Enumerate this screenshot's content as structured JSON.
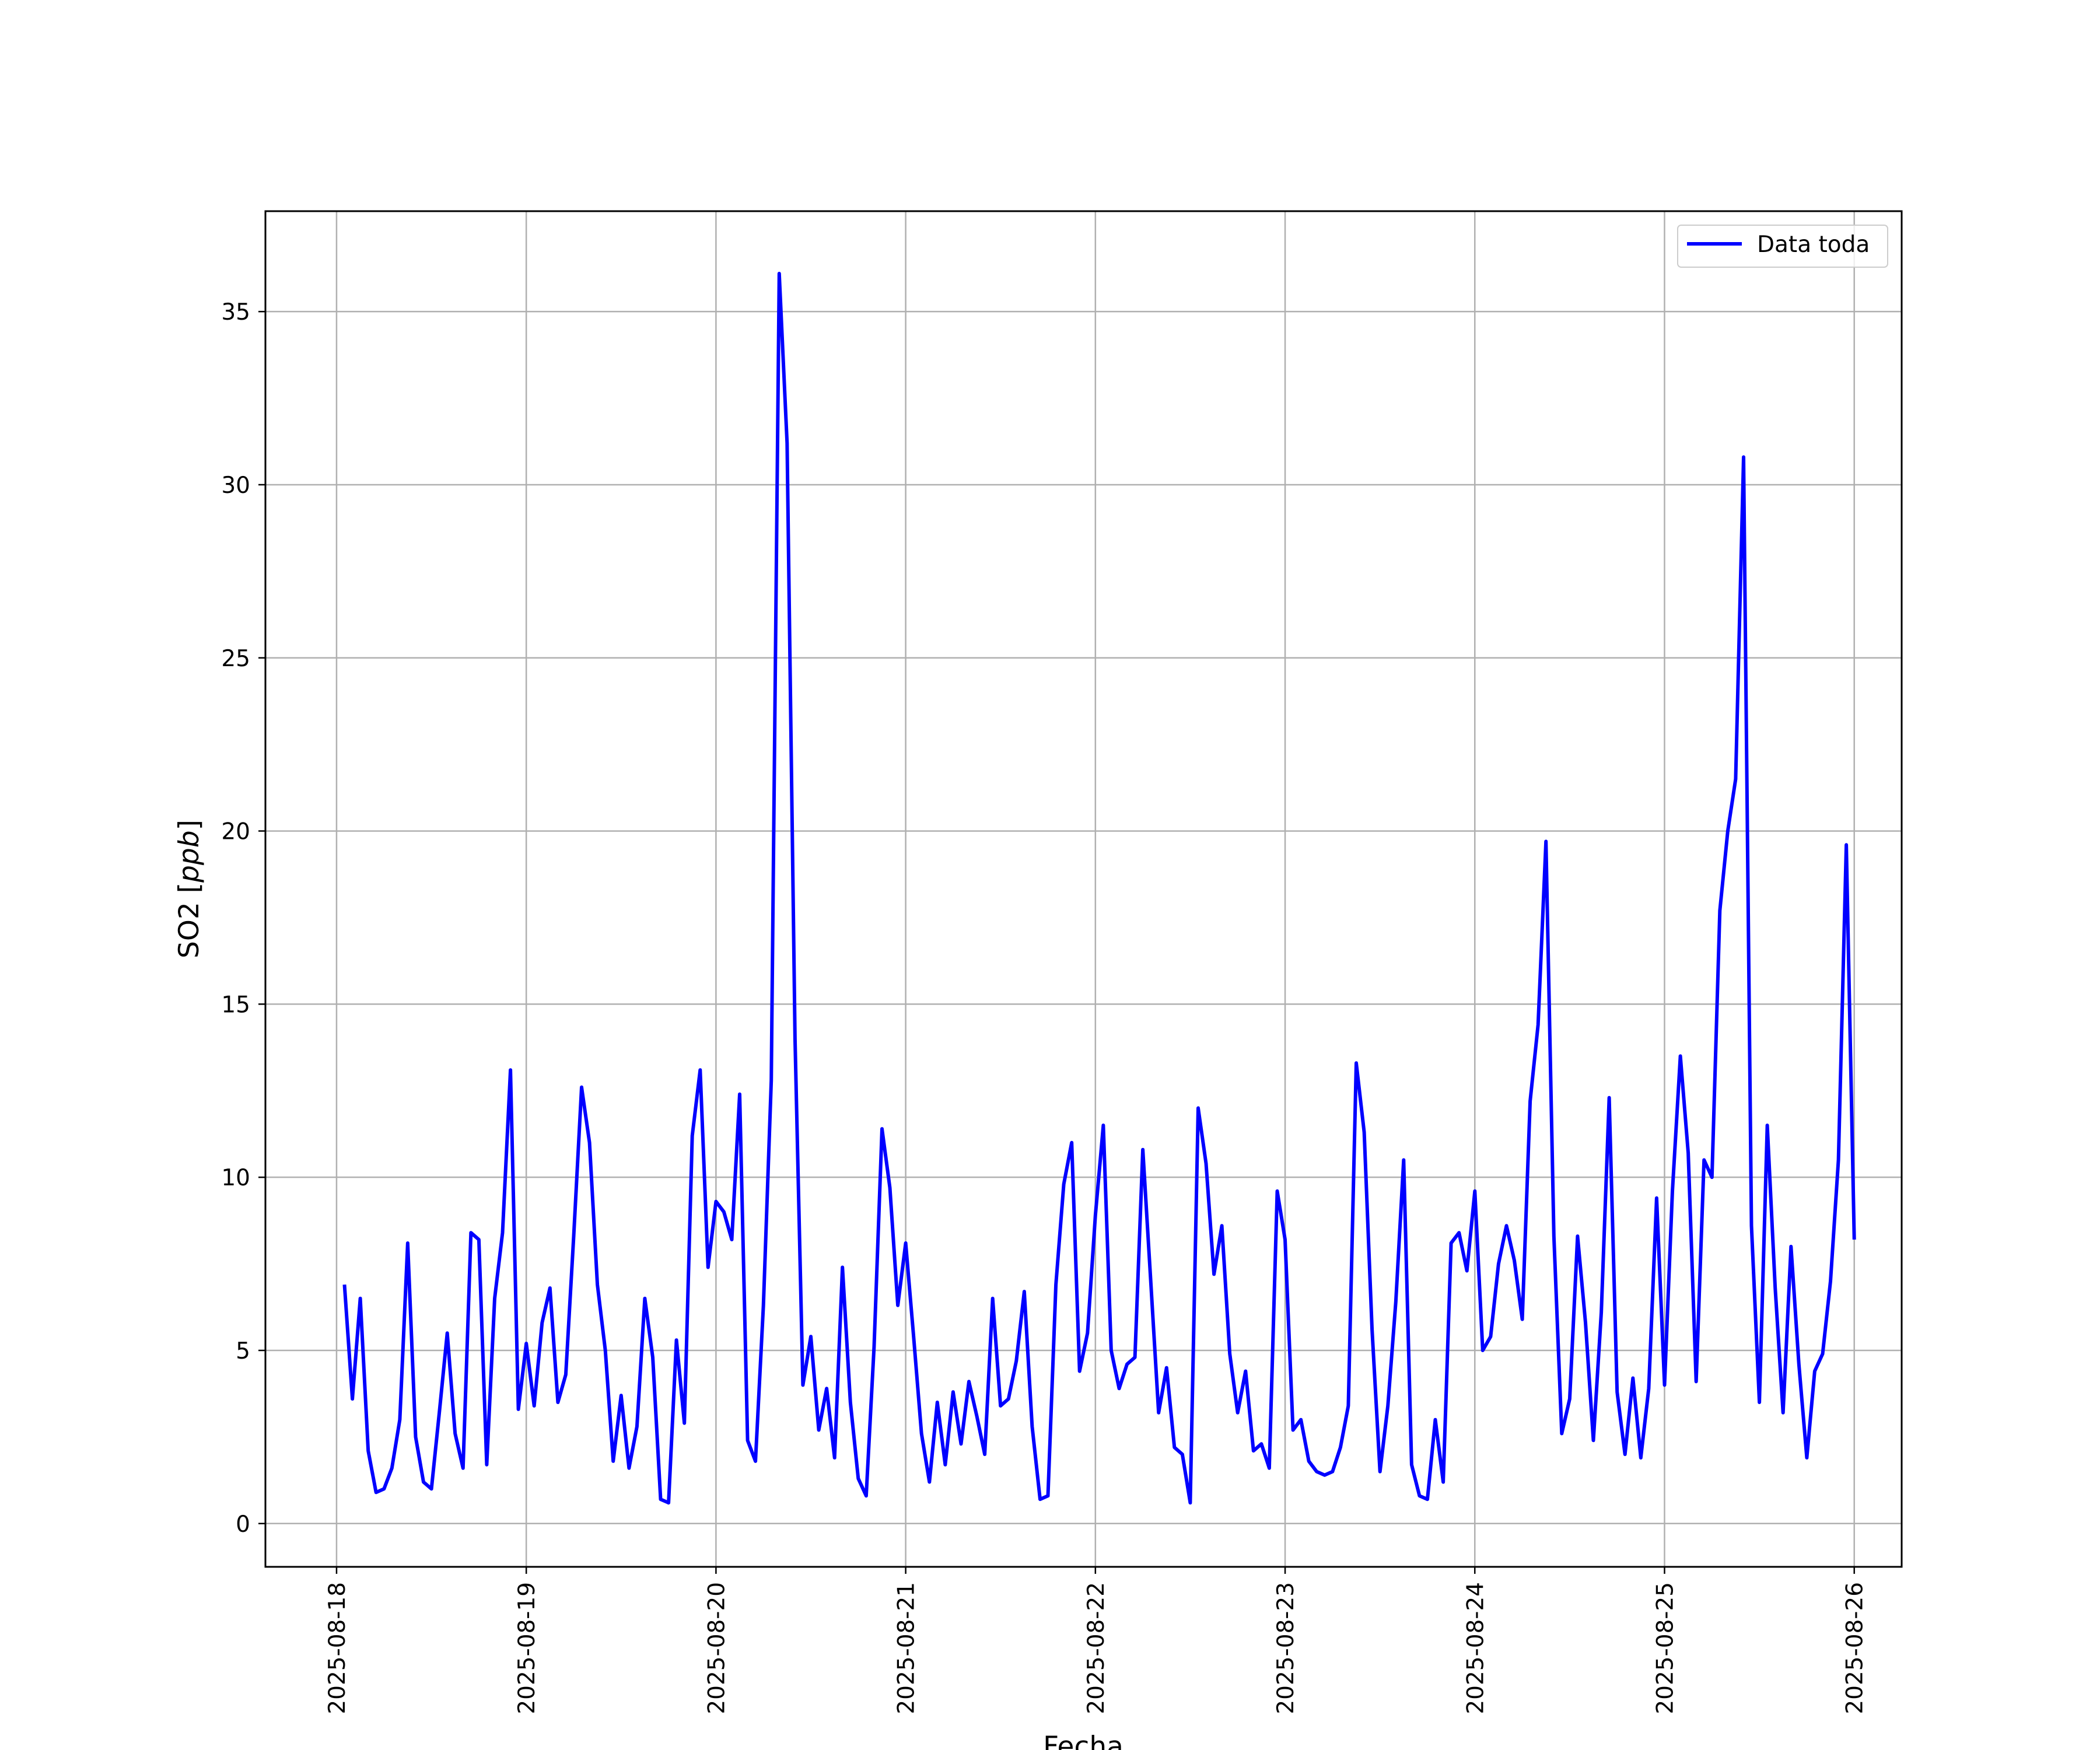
{
  "chart_data": {
    "type": "line",
    "title": "",
    "xlabel": "Fecha",
    "ylabel": "SO2 [ppb]",
    "ylabel_parts": {
      "prefix": "SO2 [",
      "unit": "ppb",
      "suffix": "]"
    },
    "xlim": [
      "2025-08-17T15:00",
      "2025-08-26T06:00"
    ],
    "ylim": [
      -1.25,
      37.9
    ],
    "x_ticks": [
      "2025-08-18",
      "2025-08-19",
      "2025-08-20",
      "2025-08-21",
      "2025-08-22",
      "2025-08-23",
      "2025-08-24",
      "2025-08-25",
      "2025-08-26"
    ],
    "y_ticks": [
      0,
      5,
      10,
      15,
      20,
      25,
      30,
      35
    ],
    "grid": true,
    "legend_position": "top-right",
    "series": [
      {
        "name": "Data toda",
        "color": "#0000ff",
        "start": "2025-08-18T01:00",
        "step_hours": 1,
        "values": [
          6.9,
          3.6,
          6.5,
          2.1,
          0.9,
          1.0,
          1.6,
          3.0,
          8.1,
          2.5,
          1.2,
          1.0,
          3.2,
          5.5,
          2.6,
          1.6,
          8.4,
          8.2,
          1.7,
          6.5,
          8.4,
          13.1,
          3.3,
          5.2,
          3.4,
          5.8,
          6.8,
          3.5,
          4.3,
          8.3,
          12.6,
          11.0,
          6.9,
          5.0,
          1.8,
          3.7,
          1.6,
          2.8,
          6.5,
          4.8,
          0.7,
          0.6,
          5.3,
          2.9,
          11.2,
          13.1,
          7.4,
          9.3,
          9.0,
          8.2,
          12.4,
          2.4,
          1.8,
          6.3,
          12.8,
          36.1,
          31.2,
          14.0,
          4.0,
          5.4,
          2.7,
          3.9,
          1.9,
          7.4,
          3.5,
          1.3,
          0.8,
          5.1,
          11.4,
          9.7,
          6.3,
          8.1,
          5.4,
          2.6,
          1.2,
          3.5,
          1.7,
          3.8,
          2.3,
          4.1,
          3.1,
          2.0,
          6.5,
          3.4,
          3.6,
          4.7,
          6.7,
          2.8,
          0.7,
          0.8,
          6.9,
          9.8,
          11.0,
          4.4,
          5.5,
          8.9,
          11.5,
          5.0,
          3.9,
          4.6,
          4.8,
          10.8,
          7.0,
          3.2,
          4.5,
          2.2,
          2.0,
          0.6,
          12.0,
          10.4,
          7.2,
          8.6,
          4.9,
          3.2,
          4.4,
          2.1,
          2.3,
          1.6,
          9.6,
          8.2,
          2.7,
          3.0,
          1.8,
          1.5,
          1.4,
          1.5,
          2.2,
          3.4,
          13.3,
          11.3,
          5.6,
          1.5,
          3.4,
          6.4,
          10.5,
          1.7,
          0.8,
          0.7,
          3.0,
          1.2,
          8.1,
          8.4,
          7.3,
          9.6,
          5.0,
          5.4,
          7.5,
          8.6,
          7.6,
          5.9,
          12.2,
          14.4,
          19.7,
          8.3,
          2.6,
          3.6,
          8.3,
          5.8,
          2.4,
          6.1,
          12.3,
          3.8,
          2.0,
          4.2,
          1.9,
          3.9,
          9.4,
          4.0,
          9.6,
          13.5,
          10.7,
          4.1,
          10.5,
          10.0,
          17.7,
          20.0,
          21.5,
          30.8,
          8.6,
          3.5,
          11.5,
          6.8,
          3.2,
          8.0,
          4.6,
          1.9,
          4.4,
          4.9,
          7.0,
          10.5,
          19.6,
          8.2
        ]
      }
    ]
  }
}
